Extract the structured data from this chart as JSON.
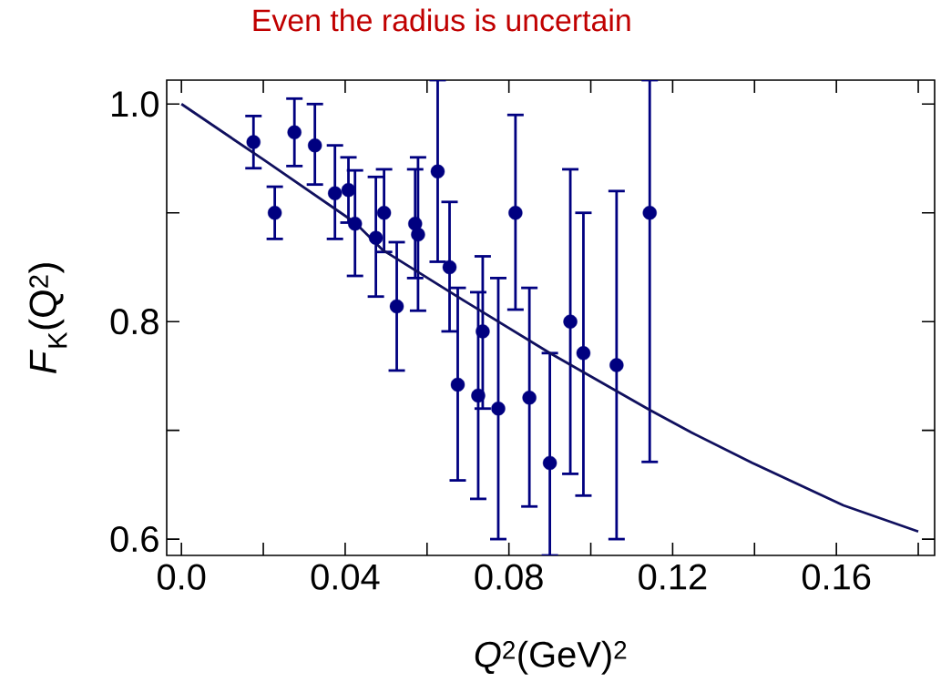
{
  "chart_data": {
    "type": "scatter",
    "title": "Even the radius is uncertain",
    "xlabel": "*Q*$^{2}$(GeV)$^{2}$",
    "ylabel": "*F*$_{K}$(Q$^{2}$)",
    "xlim": [
      -0.0036,
      0.184
    ],
    "ylim": [
      0.585,
      1.022
    ],
    "xticks": [
      {
        "value": 0.0,
        "label": "0.0"
      },
      {
        "value": 0.02,
        "label": null
      },
      {
        "value": 0.04,
        "label": "0.04"
      },
      {
        "value": 0.06,
        "label": null
      },
      {
        "value": 0.08,
        "label": "0.08"
      },
      {
        "value": 0.1,
        "label": null
      },
      {
        "value": 0.12,
        "label": "0.12"
      },
      {
        "value": 0.14,
        "label": null
      },
      {
        "value": 0.16,
        "label": "0.16"
      },
      {
        "value": 0.18,
        "label": null
      }
    ],
    "yticks": [
      {
        "value": 0.6,
        "label": "0.6"
      },
      {
        "value": 0.7,
        "label": null
      },
      {
        "value": 0.8,
        "label": "0.8"
      },
      {
        "value": 0.9,
        "label": null
      },
      {
        "value": 1.0,
        "label": "1.0"
      }
    ],
    "grid": false,
    "series": [
      {
        "color": "#000080",
        "marker": "circle",
        "x": [
          0.0176,
          0.0228,
          0.0276,
          0.0326,
          0.0375,
          0.0408,
          0.0424,
          0.0475,
          0.0495,
          0.0526,
          0.0571,
          0.0578,
          0.0626,
          0.0655,
          0.0675,
          0.0725,
          0.0736,
          0.0774,
          0.0816,
          0.085,
          0.09,
          0.095,
          0.0982,
          0.1063,
          0.1144
        ],
        "values": [
          0.965,
          0.9,
          0.974,
          0.962,
          0.918,
          0.921,
          0.89,
          0.877,
          0.9,
          0.814,
          0.89,
          0.88,
          0.938,
          0.85,
          0.742,
          0.732,
          0.791,
          0.72,
          0.9,
          0.73,
          0.67,
          0.8,
          0.771,
          0.76,
          0.9
        ],
        "errors": [
          [
            0.941,
            0.989
          ],
          [
            0.876,
            0.924
          ],
          [
            0.943,
            1.005
          ],
          [
            0.926,
            1.0
          ],
          [
            0.876,
            0.962
          ],
          [
            0.891,
            0.951
          ],
          [
            0.842,
            0.939
          ],
          [
            0.823,
            0.933
          ],
          [
            0.864,
            0.94
          ],
          [
            0.755,
            0.873
          ],
          [
            0.84,
            0.94
          ],
          [
            0.81,
            0.951
          ],
          [
            0.855,
            1.022
          ],
          [
            0.791,
            0.91
          ],
          [
            0.654,
            0.831
          ],
          [
            0.637,
            0.827
          ],
          [
            0.72,
            0.86
          ],
          [
            0.6,
            0.84
          ],
          [
            0.811,
            0.99
          ],
          [
            0.63,
            0.831
          ],
          [
            0.585,
            0.771
          ],
          [
            0.66,
            0.94
          ],
          [
            0.64,
            0.9
          ],
          [
            0.6,
            0.92
          ],
          [
            0.671,
            1.022
          ]
        ]
      },
      {
        "type": "line",
        "color": "#10105e",
        "x": [
          0.0,
          0.02,
          0.0424,
          0.0491,
          0.07,
          0.09,
          0.1143,
          0.1246,
          0.1395,
          0.1617,
          0.18
        ],
        "values": [
          1.0,
          0.949,
          0.891,
          0.866,
          0.817,
          0.771,
          0.719,
          0.698,
          0.67,
          0.631,
          0.607
        ]
      }
    ]
  }
}
